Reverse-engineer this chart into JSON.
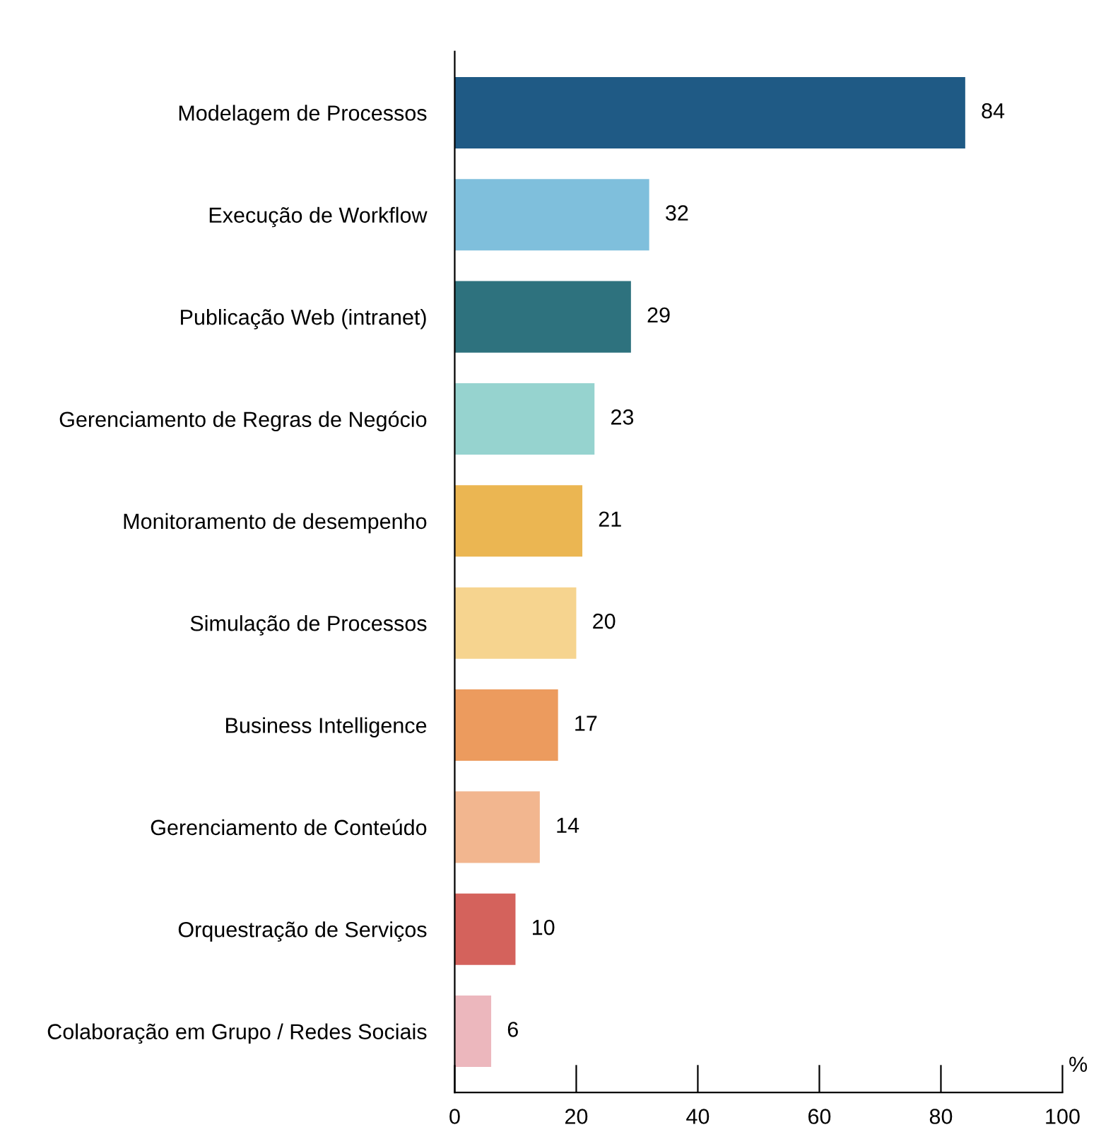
{
  "chart_data": {
    "type": "bar",
    "orientation": "horizontal",
    "xlabel": "%",
    "categories": [
      "Modelagem de Processos",
      "Execução de Workflow",
      "Publicação Web (intranet)",
      "Gerenciamento de Regras de Negócio",
      "Monitoramento de desempenho",
      "Simulação de Processos",
      "Business Intelligence",
      "Gerenciamento de Conteúdo",
      "Orquestração de Serviços",
      "Colaboração em Grupo / Redes Sociais"
    ],
    "values": [
      84,
      32,
      29,
      23,
      21,
      20,
      17,
      14,
      10,
      6
    ],
    "colors": [
      "#1f5a85",
      "#7fbfdc",
      "#2e727e",
      "#96d3cf",
      "#ebb652",
      "#f6d48f",
      "#ec9b5e",
      "#f2b68f",
      "#d4625c",
      "#ecb7bd"
    ],
    "xlim": [
      0,
      100
    ],
    "xticks": [
      0,
      20,
      40,
      60,
      80,
      100
    ],
    "data_labels": true,
    "grid": false,
    "legend": false
  }
}
